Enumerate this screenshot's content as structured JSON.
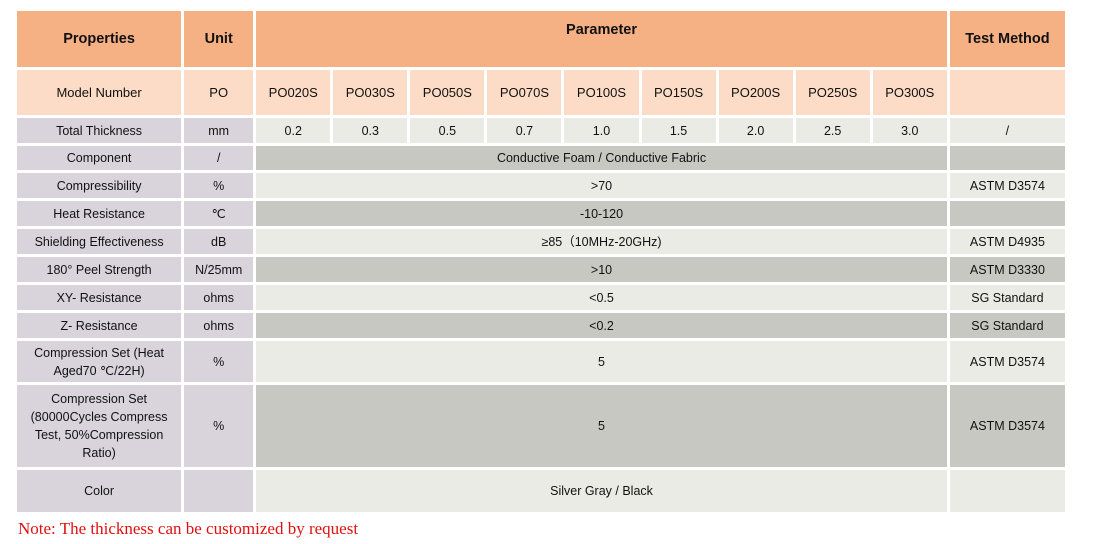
{
  "colors": {
    "header": "#f5b084",
    "model_row": "#fcdcc6",
    "property_col": "#d9d4dc",
    "light_row": "#ebebe6",
    "dark_row": "#c8c8c3",
    "note": "#e01010"
  },
  "header": {
    "properties": "Properties",
    "unit": "Unit",
    "parameter": "Parameter",
    "test_method": "Test Method"
  },
  "model": {
    "label": "Model Number",
    "unit": "PO",
    "models": [
      "PO020S",
      "PO030S",
      "PO050S",
      "PO070S",
      "PO100S",
      "PO150S",
      "PO200S",
      "PO250S",
      "PO300S"
    ],
    "test": ""
  },
  "thickness": {
    "label": "Total Thickness",
    "unit": "mm",
    "values": [
      "0.2",
      "0.3",
      "0.5",
      "0.7",
      "1.0",
      "1.5",
      "2.0",
      "2.5",
      "3.0"
    ],
    "test": "/"
  },
  "rows": [
    {
      "label": "Component",
      "unit": "/",
      "value": "Conductive Foam / Conductive Fabric",
      "test": ""
    },
    {
      "label": "Compressibility",
      "unit": "%",
      "value": ">70",
      "test": "ASTM D3574"
    },
    {
      "label": "Heat Resistance",
      "unit": "℃",
      "value": "-10-120",
      "test": ""
    },
    {
      "label": "Shielding Effectiveness",
      "unit": "dB",
      "value": "≥85（10MHz-20GHz)",
      "test": "ASTM D4935"
    },
    {
      "label": "180° Peel Strength",
      "unit": "N/25mm",
      "value": ">10",
      "test": "ASTM D3330"
    },
    {
      "label": "XY- Resistance",
      "unit": "ohms",
      "value": "<0.5",
      "test": "SG Standard"
    },
    {
      "label": "Z- Resistance",
      "unit": "ohms",
      "value": "<0.2",
      "test": "SG Standard"
    },
    {
      "label": "Compression Set (Heat Aged70 ℃/22H)",
      "unit": "%",
      "value": "5",
      "test": "ASTM D3574"
    },
    {
      "label": "Compression Set (80000Cycles Compress Test, 50%Compression Ratio)",
      "unit": "%",
      "value": "5",
      "test": "ASTM D3574"
    },
    {
      "label": "Color",
      "unit": "",
      "value": "Silver Gray / Black",
      "test": ""
    }
  ],
  "note": "Note: The thickness can be customized by request"
}
